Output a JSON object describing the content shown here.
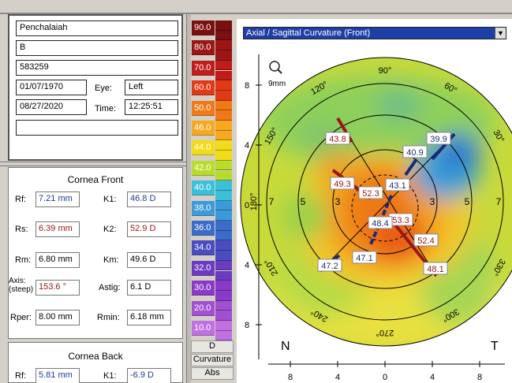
{
  "patient": {
    "last_name": "Penchalaiah",
    "first_name": "B",
    "id": "583259",
    "dob": "01/07/1970",
    "eye_label": "Eye:",
    "eye": "Left",
    "exam_date": "08/27/2020",
    "time_label": "Time:",
    "time": "12:25:51",
    "comment": ""
  },
  "cornea_front": {
    "title": "Cornea Front",
    "rf": {
      "label": "Rf:",
      "value": "7.21 mm"
    },
    "k1": {
      "label": "K1:",
      "value": "46.8 D"
    },
    "rs": {
      "label": "Rs:",
      "value": "6.39 mm"
    },
    "k2": {
      "label": "K2:",
      "value": "52.9 D"
    },
    "rm": {
      "label": "Rm:",
      "value": "6.80 mm"
    },
    "km": {
      "label": "Km:",
      "value": "49.6 D"
    },
    "axis": {
      "label_1": "Axis:",
      "label_2": "(steep)",
      "value": "153.6 °"
    },
    "astig": {
      "label": "Astig:",
      "value": "6.1 D"
    },
    "rper": {
      "label": "Rper:",
      "value": "8.00 mm"
    },
    "rmin": {
      "label": "Rmin:",
      "value": "6.18 mm"
    }
  },
  "cornea_back": {
    "title": "Cornea Back",
    "rf": {
      "label": "Rf:",
      "value": "5.81 mm"
    },
    "k1": {
      "label": "K1:",
      "value": "-6.9 D"
    }
  },
  "scale": {
    "steps": [
      {
        "label": "90.0",
        "color": "#7a1010"
      },
      {
        "label": "80.0",
        "color": "#9c1616"
      },
      {
        "label": "70.0",
        "color": "#c01c1c"
      },
      {
        "label": "60.0",
        "color": "#e03a18"
      },
      {
        "label": "50.0",
        "color": "#f07818"
      },
      {
        "label": "46.0",
        "color": "#f6a81e"
      },
      {
        "label": "44.0",
        "color": "#f2dc1a"
      },
      {
        "label": "42.0",
        "color": "#b8dc2c"
      },
      {
        "label": "40.0",
        "color": "#3cc0d8"
      },
      {
        "label": "38.0",
        "color": "#3c9ad8"
      },
      {
        "label": "36.0",
        "color": "#3a6cc8"
      },
      {
        "label": "34.0",
        "color": "#4a4cc0"
      },
      {
        "label": "32.0",
        "color": "#6a3cc0"
      },
      {
        "label": "30.0",
        "color": "#8a3ac8"
      },
      {
        "label": "20.0",
        "color": "#a050d0"
      },
      {
        "label": "10.0",
        "color": "#c070e0"
      }
    ],
    "unit": "D",
    "mode": "Curvature",
    "abs": "Abs"
  },
  "map": {
    "title": "Axial / Sagittal Curvature (Front)",
    "zoom_label": "9mm",
    "angle_labels": [
      "90°",
      "60°",
      "30°",
      "0°",
      "330°",
      "300°",
      "270°",
      "240°",
      "210°",
      "180°",
      "150°",
      "120°"
    ],
    "y_ticks": [
      "8",
      "4",
      "0",
      "4",
      "8"
    ],
    "x_ticks": [
      "8",
      "4",
      "0",
      "4",
      "8"
    ],
    "ring_labels": [
      "7",
      "5",
      "3",
      "3",
      "5",
      "7"
    ],
    "nasal": "N",
    "temporal": "T",
    "readings_red": [
      "43.8",
      "49.3",
      "52.3",
      "53.3",
      "52.4",
      "48.1"
    ],
    "readings_blue": [
      "39.9",
      "40.9",
      "43.1",
      "48.4",
      "47.1",
      "47.2"
    ]
  }
}
